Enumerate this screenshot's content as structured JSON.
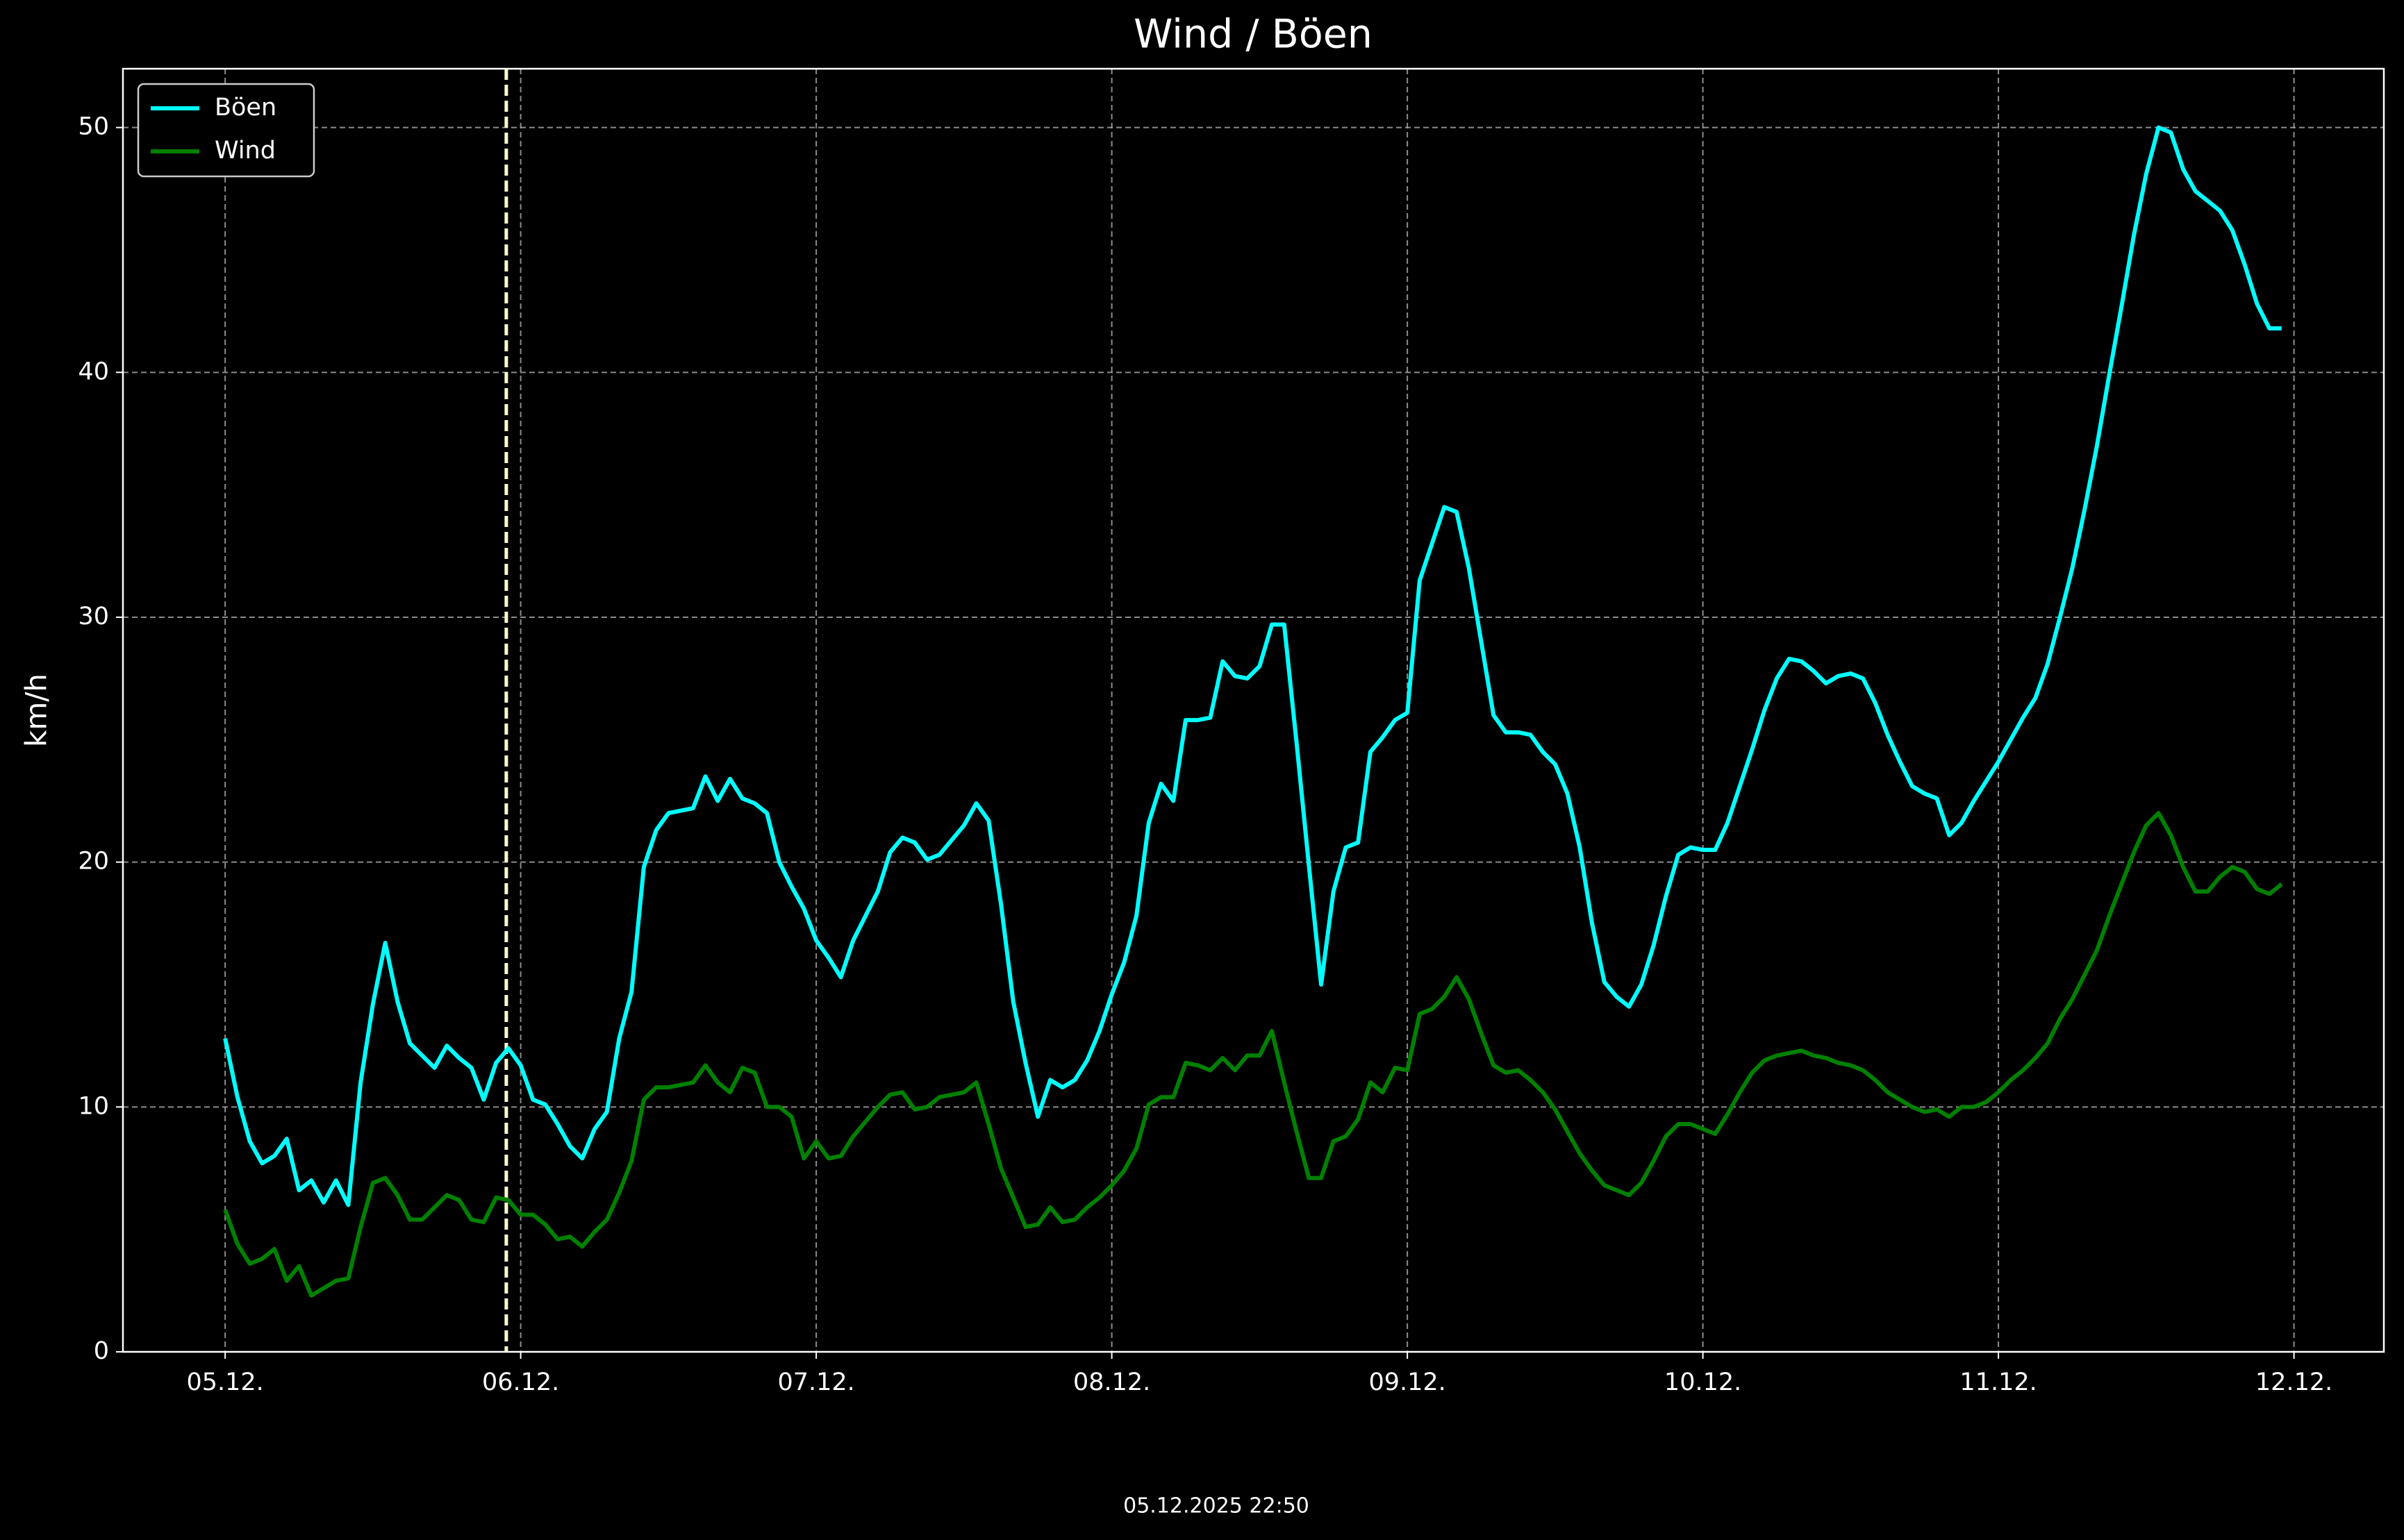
{
  "chart_data": {
    "type": "line",
    "title": "Wind / Böen",
    "ylabel": "km/h",
    "footer": "05.12.2025 22:50",
    "x": [
      0,
      1,
      2,
      3,
      4,
      5,
      6,
      7,
      8,
      9,
      10,
      11,
      12,
      13,
      14,
      15,
      16,
      17,
      18,
      19,
      20,
      21,
      22,
      23,
      24,
      25,
      26,
      27,
      28,
      29,
      30,
      31,
      32,
      33,
      34,
      35,
      36,
      37,
      38,
      39,
      40,
      41,
      42,
      43,
      44,
      45,
      46,
      47,
      48,
      49,
      50,
      51,
      52,
      53,
      54,
      55,
      56,
      57,
      58,
      59,
      60,
      61,
      62,
      63,
      64,
      65,
      66,
      67,
      68,
      69,
      70,
      71,
      72,
      73,
      74,
      75,
      76,
      77,
      78,
      79,
      80,
      81,
      82,
      83,
      84,
      85,
      86,
      87,
      88,
      89,
      90,
      91,
      92,
      93,
      94,
      95,
      96,
      97,
      98,
      99,
      100,
      101,
      102,
      103,
      104,
      105,
      106,
      107,
      108,
      109,
      110,
      111,
      112,
      113,
      114,
      115,
      116,
      117,
      118,
      119,
      120,
      121,
      122,
      123,
      124,
      125,
      126,
      127,
      128,
      129,
      130,
      131,
      132,
      133,
      134,
      135,
      136,
      137,
      138,
      139,
      140,
      141,
      142,
      143,
      144,
      145,
      146,
      147,
      148,
      149,
      150,
      151,
      152,
      153,
      154,
      155,
      156,
      157,
      158,
      159,
      160,
      161,
      162,
      163,
      164,
      165,
      166,
      167
    ],
    "series": [
      {
        "name": "Böen",
        "color": "#00ffff",
        "values": [
          12.8,
          10.4,
          8.6,
          7.7,
          8.0,
          8.7,
          6.6,
          7.0,
          6.1,
          7.0,
          6.0,
          11.0,
          14.2,
          16.7,
          14.3,
          12.6,
          12.1,
          11.6,
          12.5,
          12.0,
          11.6,
          10.3,
          11.8,
          12.4,
          11.7,
          10.3,
          10.1,
          9.3,
          8.4,
          7.9,
          9.1,
          9.8,
          12.8,
          14.7,
          19.8,
          21.3,
          22.0,
          22.1,
          22.2,
          23.5,
          22.5,
          23.4,
          22.6,
          22.4,
          22.0,
          20.0,
          19.0,
          18.1,
          16.8,
          16.1,
          15.3,
          16.8,
          17.8,
          18.8,
          20.4,
          21.0,
          20.8,
          20.1,
          20.3,
          20.9,
          21.5,
          22.4,
          21.7,
          18.3,
          14.3,
          11.8,
          9.6,
          11.1,
          10.8,
          11.1,
          11.9,
          13.1,
          14.6,
          15.9,
          17.8,
          21.6,
          23.2,
          22.5,
          25.8,
          25.8,
          25.9,
          28.2,
          27.6,
          27.5,
          28.0,
          29.7,
          29.7,
          24.9,
          19.9,
          15.0,
          18.8,
          20.6,
          20.8,
          24.5,
          25.1,
          25.8,
          26.1,
          31.5,
          33.0,
          34.5,
          34.3,
          32.0,
          29.0,
          26.0,
          25.3,
          25.3,
          25.2,
          24.5,
          24.0,
          22.8,
          20.6,
          17.5,
          15.1,
          14.5,
          14.1,
          15.0,
          16.6,
          18.6,
          20.3,
          20.6,
          20.5,
          20.5,
          21.6,
          23.1,
          24.6,
          26.2,
          27.5,
          28.3,
          28.2,
          27.8,
          27.3,
          27.6,
          27.7,
          27.5,
          26.5,
          25.2,
          24.1,
          23.1,
          22.8,
          22.6,
          21.1,
          21.6,
          22.5,
          23.3,
          24.1,
          25.0,
          25.9,
          26.7,
          28.1,
          30.0,
          32.0,
          34.4,
          37.0,
          39.9,
          42.7,
          45.6,
          48.1,
          50.0,
          49.8,
          48.3,
          47.4,
          47.0,
          46.6,
          45.8,
          44.4,
          42.8,
          41.8,
          41.8
        ]
      },
      {
        "name": "Wind",
        "color": "#008000",
        "values": [
          5.8,
          4.4,
          3.6,
          3.8,
          4.2,
          2.9,
          3.5,
          2.3,
          2.6,
          2.9,
          3.0,
          5.1,
          6.9,
          7.1,
          6.4,
          5.4,
          5.4,
          5.9,
          6.4,
          6.2,
          5.4,
          5.3,
          6.3,
          6.2,
          5.6,
          5.6,
          5.2,
          4.6,
          4.7,
          4.3,
          4.9,
          5.4,
          6.5,
          7.8,
          10.3,
          10.8,
          10.8,
          10.9,
          11.0,
          11.7,
          11.0,
          10.6,
          11.6,
          11.4,
          10.0,
          10.0,
          9.6,
          7.9,
          8.6,
          7.9,
          8.0,
          8.8,
          9.4,
          10.0,
          10.5,
          10.6,
          9.9,
          10.0,
          10.4,
          10.5,
          10.6,
          11.0,
          9.3,
          7.5,
          6.3,
          5.1,
          5.2,
          5.9,
          5.3,
          5.4,
          5.9,
          6.3,
          6.8,
          7.4,
          8.3,
          10.1,
          10.4,
          10.4,
          11.8,
          11.7,
          11.5,
          12.0,
          11.5,
          12.1,
          12.1,
          13.1,
          11.0,
          9.0,
          7.1,
          7.1,
          8.6,
          8.8,
          9.5,
          11.0,
          10.6,
          11.6,
          11.5,
          13.8,
          14.0,
          14.5,
          15.3,
          14.4,
          13.0,
          11.7,
          11.4,
          11.5,
          11.1,
          10.6,
          9.9,
          9.0,
          8.1,
          7.4,
          6.8,
          6.6,
          6.4,
          6.9,
          7.8,
          8.8,
          9.3,
          9.3,
          9.1,
          8.9,
          9.7,
          10.6,
          11.4,
          11.9,
          12.1,
          12.2,
          12.3,
          12.1,
          12.0,
          11.8,
          11.7,
          11.5,
          11.1,
          10.6,
          10.3,
          10.0,
          9.8,
          9.9,
          9.6,
          10.0,
          10.0,
          10.2,
          10.6,
          11.1,
          11.5,
          12.0,
          12.6,
          13.6,
          14.4,
          15.4,
          16.4,
          17.8,
          19.1,
          20.4,
          21.5,
          22.0,
          21.1,
          19.8,
          18.8,
          18.8,
          19.4,
          19.8,
          19.6,
          18.9,
          18.7,
          19.1
        ]
      }
    ],
    "vline": {
      "x": 22.83,
      "color": "#fffacd"
    },
    "xlim": [
      -8.3,
      175.3
    ],
    "xticks": [
      {
        "value": 0,
        "label": "05.12."
      },
      {
        "value": 24,
        "label": "06.12."
      },
      {
        "value": 48,
        "label": "07.12."
      },
      {
        "value": 72,
        "label": "08.12."
      },
      {
        "value": 96,
        "label": "09.12."
      },
      {
        "value": 120,
        "label": "10.12."
      },
      {
        "value": 144,
        "label": "11.12."
      },
      {
        "value": 168,
        "label": "12.12."
      }
    ],
    "ylim": [
      0,
      52.4
    ],
    "yticks": [
      0,
      10,
      20,
      30,
      40,
      50
    ],
    "grid": true,
    "legend": "upper left"
  }
}
